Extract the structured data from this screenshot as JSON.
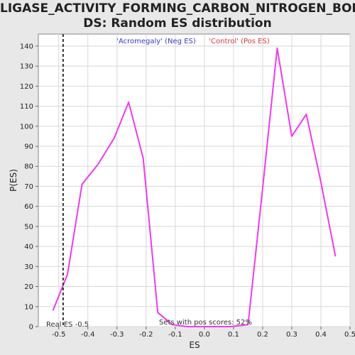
{
  "chart_data": {
    "type": "line",
    "title_line1": "LIGASE_ACTIVITY_FORMING_CARBON_NITROGEN_BON",
    "title_line2": "DS: Random ES distribution",
    "xlabel": "ES",
    "ylabel": "P(ES)",
    "xlim": [
      -0.57,
      0.5
    ],
    "ylim": [
      0,
      146
    ],
    "xticks": [
      -0.5,
      -0.4,
      -0.3,
      -0.2,
      -0.1,
      0.0,
      0.1,
      0.2,
      0.3,
      0.4,
      0.5
    ],
    "xtick_labels": [
      "-0.5",
      "-0.4",
      "-0.3",
      "-0.2",
      "-0.1",
      "0.0",
      "0.1",
      "0.2",
      "0.3",
      "0.4",
      "0.5"
    ],
    "yticks": [
      0,
      10,
      20,
      30,
      40,
      50,
      60,
      70,
      80,
      90,
      100,
      110,
      120,
      130,
      140
    ],
    "grid": true,
    "series": [
      {
        "color": "#ee3bee",
        "x": [
          -0.52,
          -0.47,
          -0.42,
          -0.365,
          -0.31,
          -0.26,
          -0.21,
          -0.16,
          -0.11,
          -0.06,
          -0.01,
          0.04,
          0.09,
          0.15,
          0.2,
          0.25,
          0.3,
          0.35,
          0.4,
          0.45
        ],
        "y": [
          8,
          26,
          71,
          81,
          94,
          112,
          84,
          7,
          1,
          0,
          0,
          0,
          0,
          1,
          69,
          139,
          95,
          106,
          72,
          35
        ]
      }
    ],
    "real_es_line": {
      "x": -0.485,
      "color": "#333333"
    },
    "legend": {
      "neg_label": "'Acromegaly' (Neg ES)",
      "pos_label": "'Control' (Pos ES)",
      "neg_color": "#3a3acb",
      "pos_color": "#d43a3a",
      "placement": "top-center"
    },
    "annotations": {
      "real_es": "Real ES -0.5",
      "pos_scores": "Sets with pos scores: 52%"
    }
  }
}
